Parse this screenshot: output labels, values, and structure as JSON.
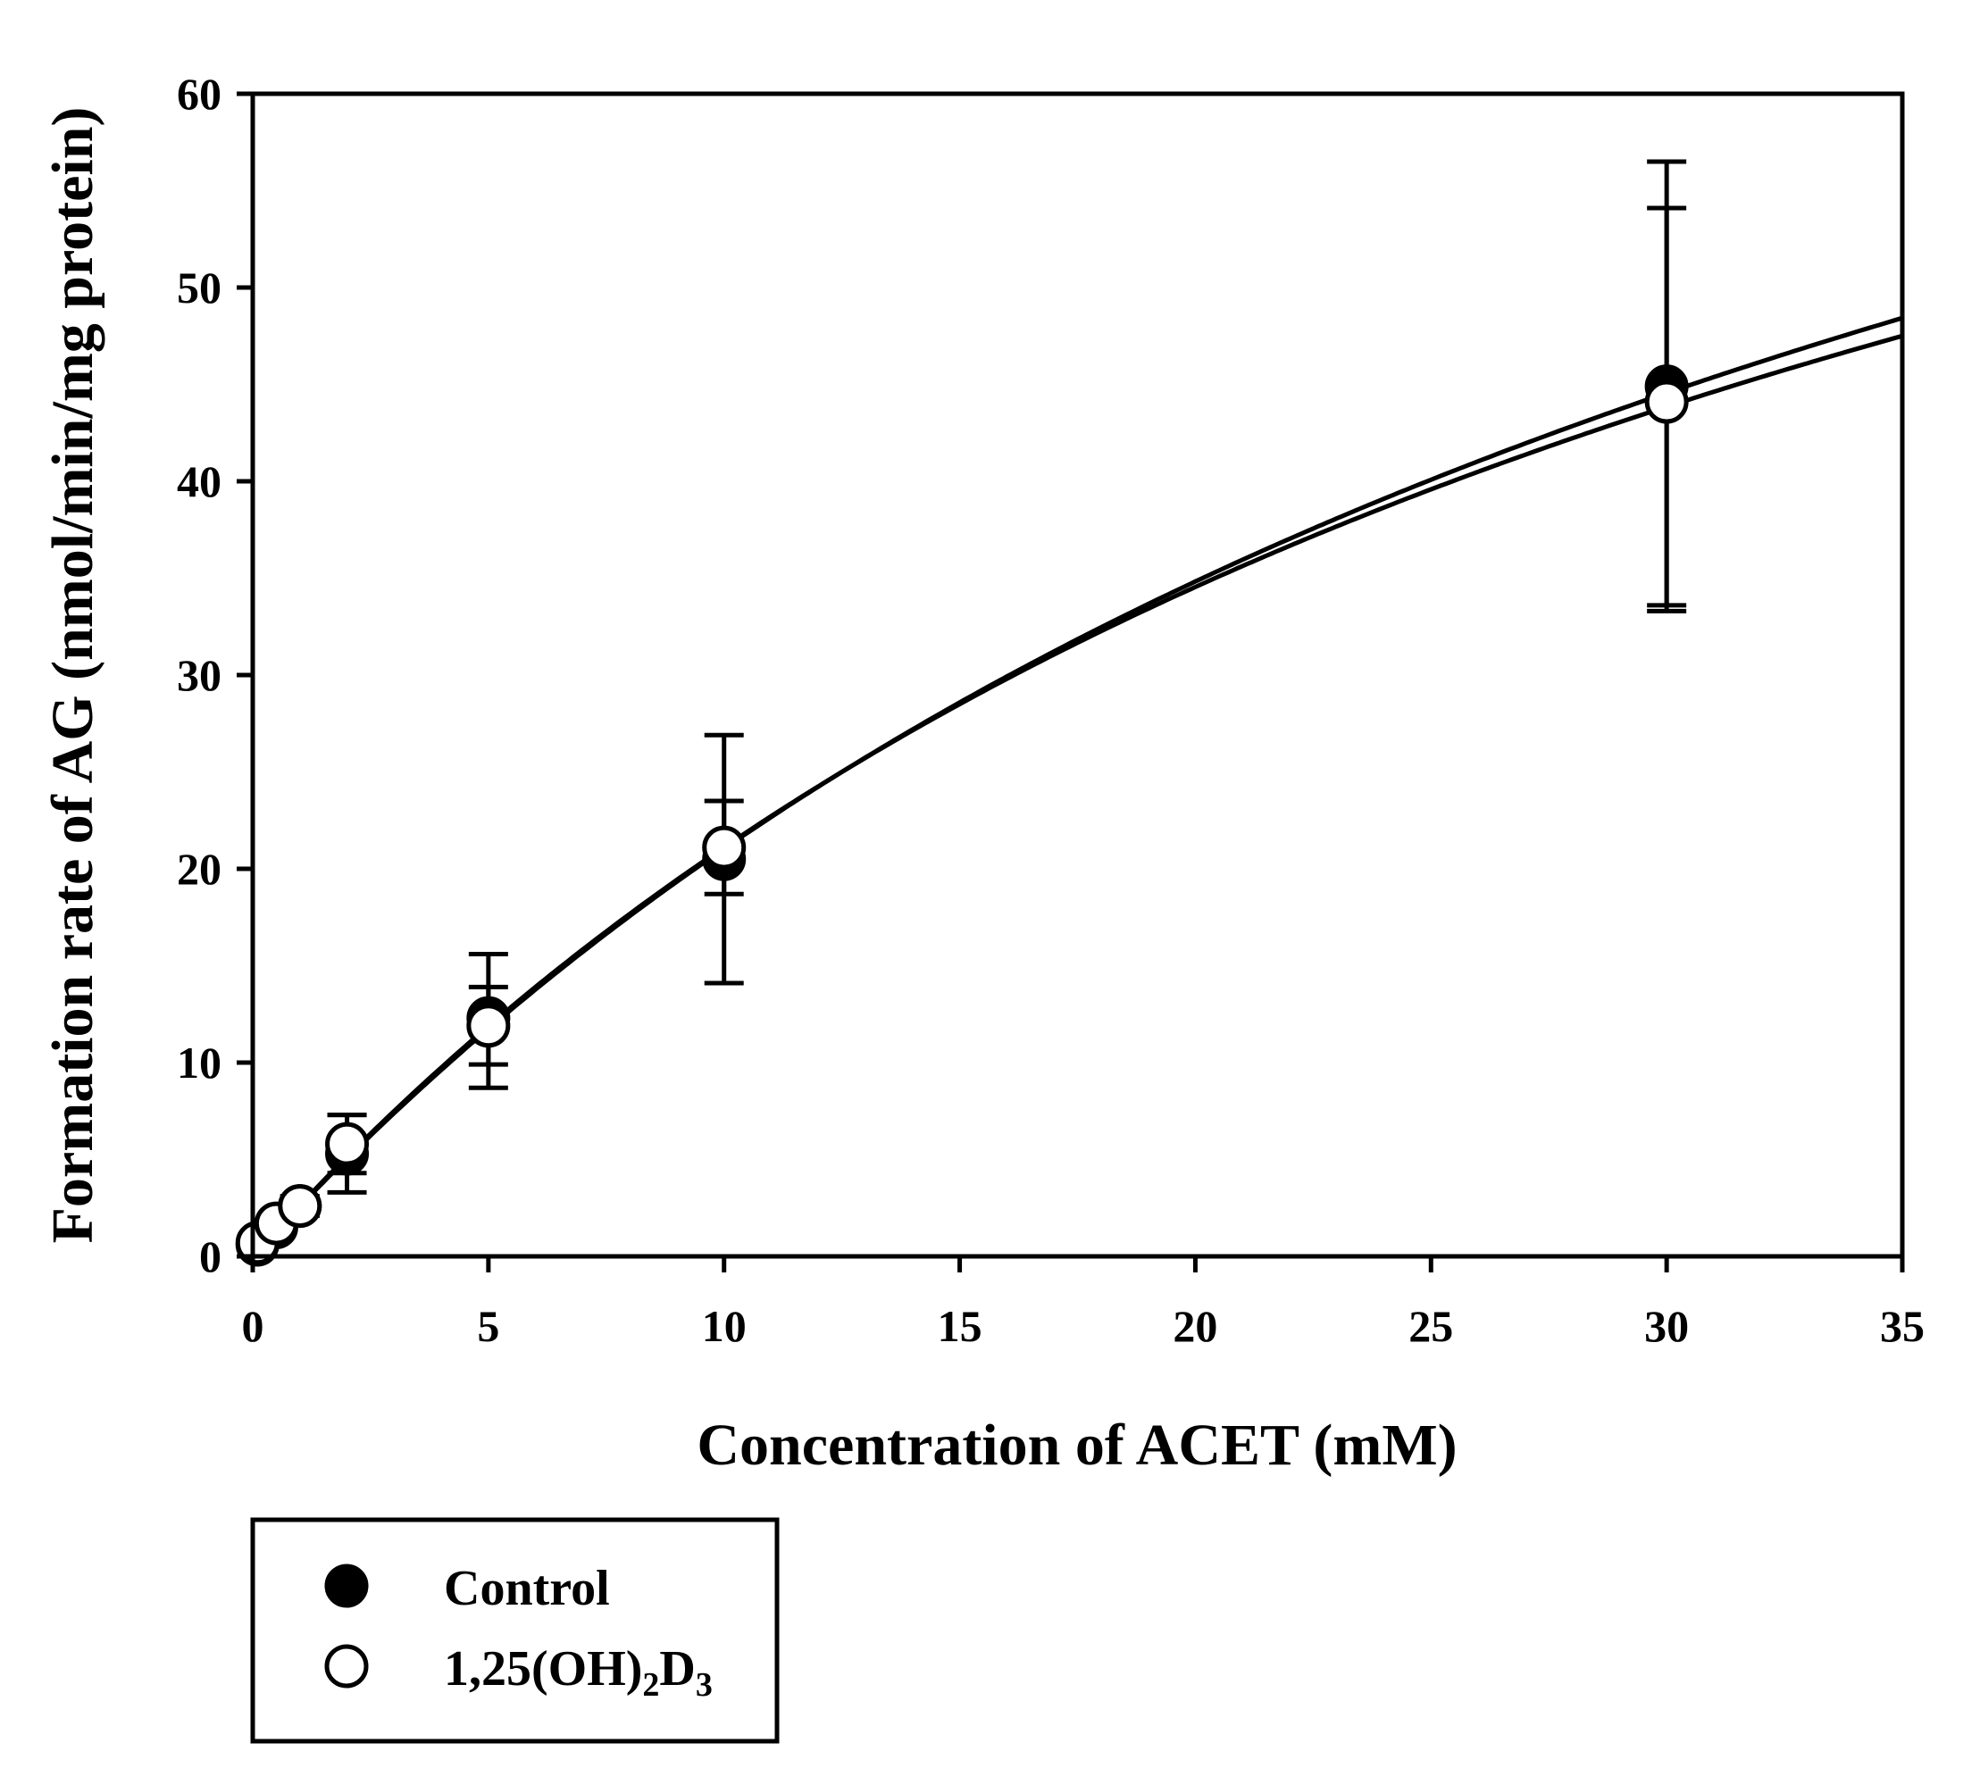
{
  "chart_data": {
    "type": "scatter",
    "title": "",
    "xlabel": "Concentration of ACET (mM)",
    "ylabel": "Formation rate of AG (nmol/min/mg protein)",
    "xlim": [
      0,
      35
    ],
    "ylim": [
      0,
      60
    ],
    "xticks": [
      0,
      5,
      10,
      15,
      20,
      25,
      30,
      35
    ],
    "yticks": [
      0,
      10,
      20,
      30,
      40,
      50,
      60
    ],
    "grid": false,
    "legend_position": "bottom-left",
    "series": [
      {
        "name": "Control",
        "marker": "filled-circle",
        "x": [
          0.1,
          0.5,
          1,
          2,
          5,
          10,
          30
        ],
        "y": [
          0.6,
          1.5,
          2.6,
          5.3,
          12.3,
          20.5,
          44.9
        ],
        "err_low": [
          0.1,
          0.3,
          0.5,
          2.0,
          3.6,
          6.4,
          11.6
        ],
        "err_high": [
          0.1,
          0.3,
          0.5,
          2.0,
          3.3,
          3.0,
          11.6
        ],
        "fit": {
          "model": "Michaelis-Menten",
          "vmax": 101,
          "km": 38
        }
      },
      {
        "name": "1,25(OH)2D3",
        "marker": "open-circle",
        "x": [
          0.1,
          0.5,
          1,
          2,
          5,
          10,
          30
        ],
        "y": [
          0.7,
          1.7,
          2.6,
          5.8,
          11.9,
          21.1,
          44.1
        ],
        "err_low": [
          0.1,
          0.3,
          0.5,
          1.5,
          2.0,
          2.4,
          10.5
        ],
        "err_high": [
          0.1,
          0.3,
          0.5,
          1.5,
          2.0,
          5.8,
          10.0
        ],
        "fit": {
          "model": "Michaelis-Menten",
          "vmax": 95,
          "km": 35
        }
      }
    ],
    "legend": {
      "entries": [
        {
          "label": "Control"
        },
        {
          "label_main": "1,25(OH)",
          "label_sub1": "2",
          "label_mid": "D",
          "label_sub2": "3"
        }
      ]
    }
  }
}
